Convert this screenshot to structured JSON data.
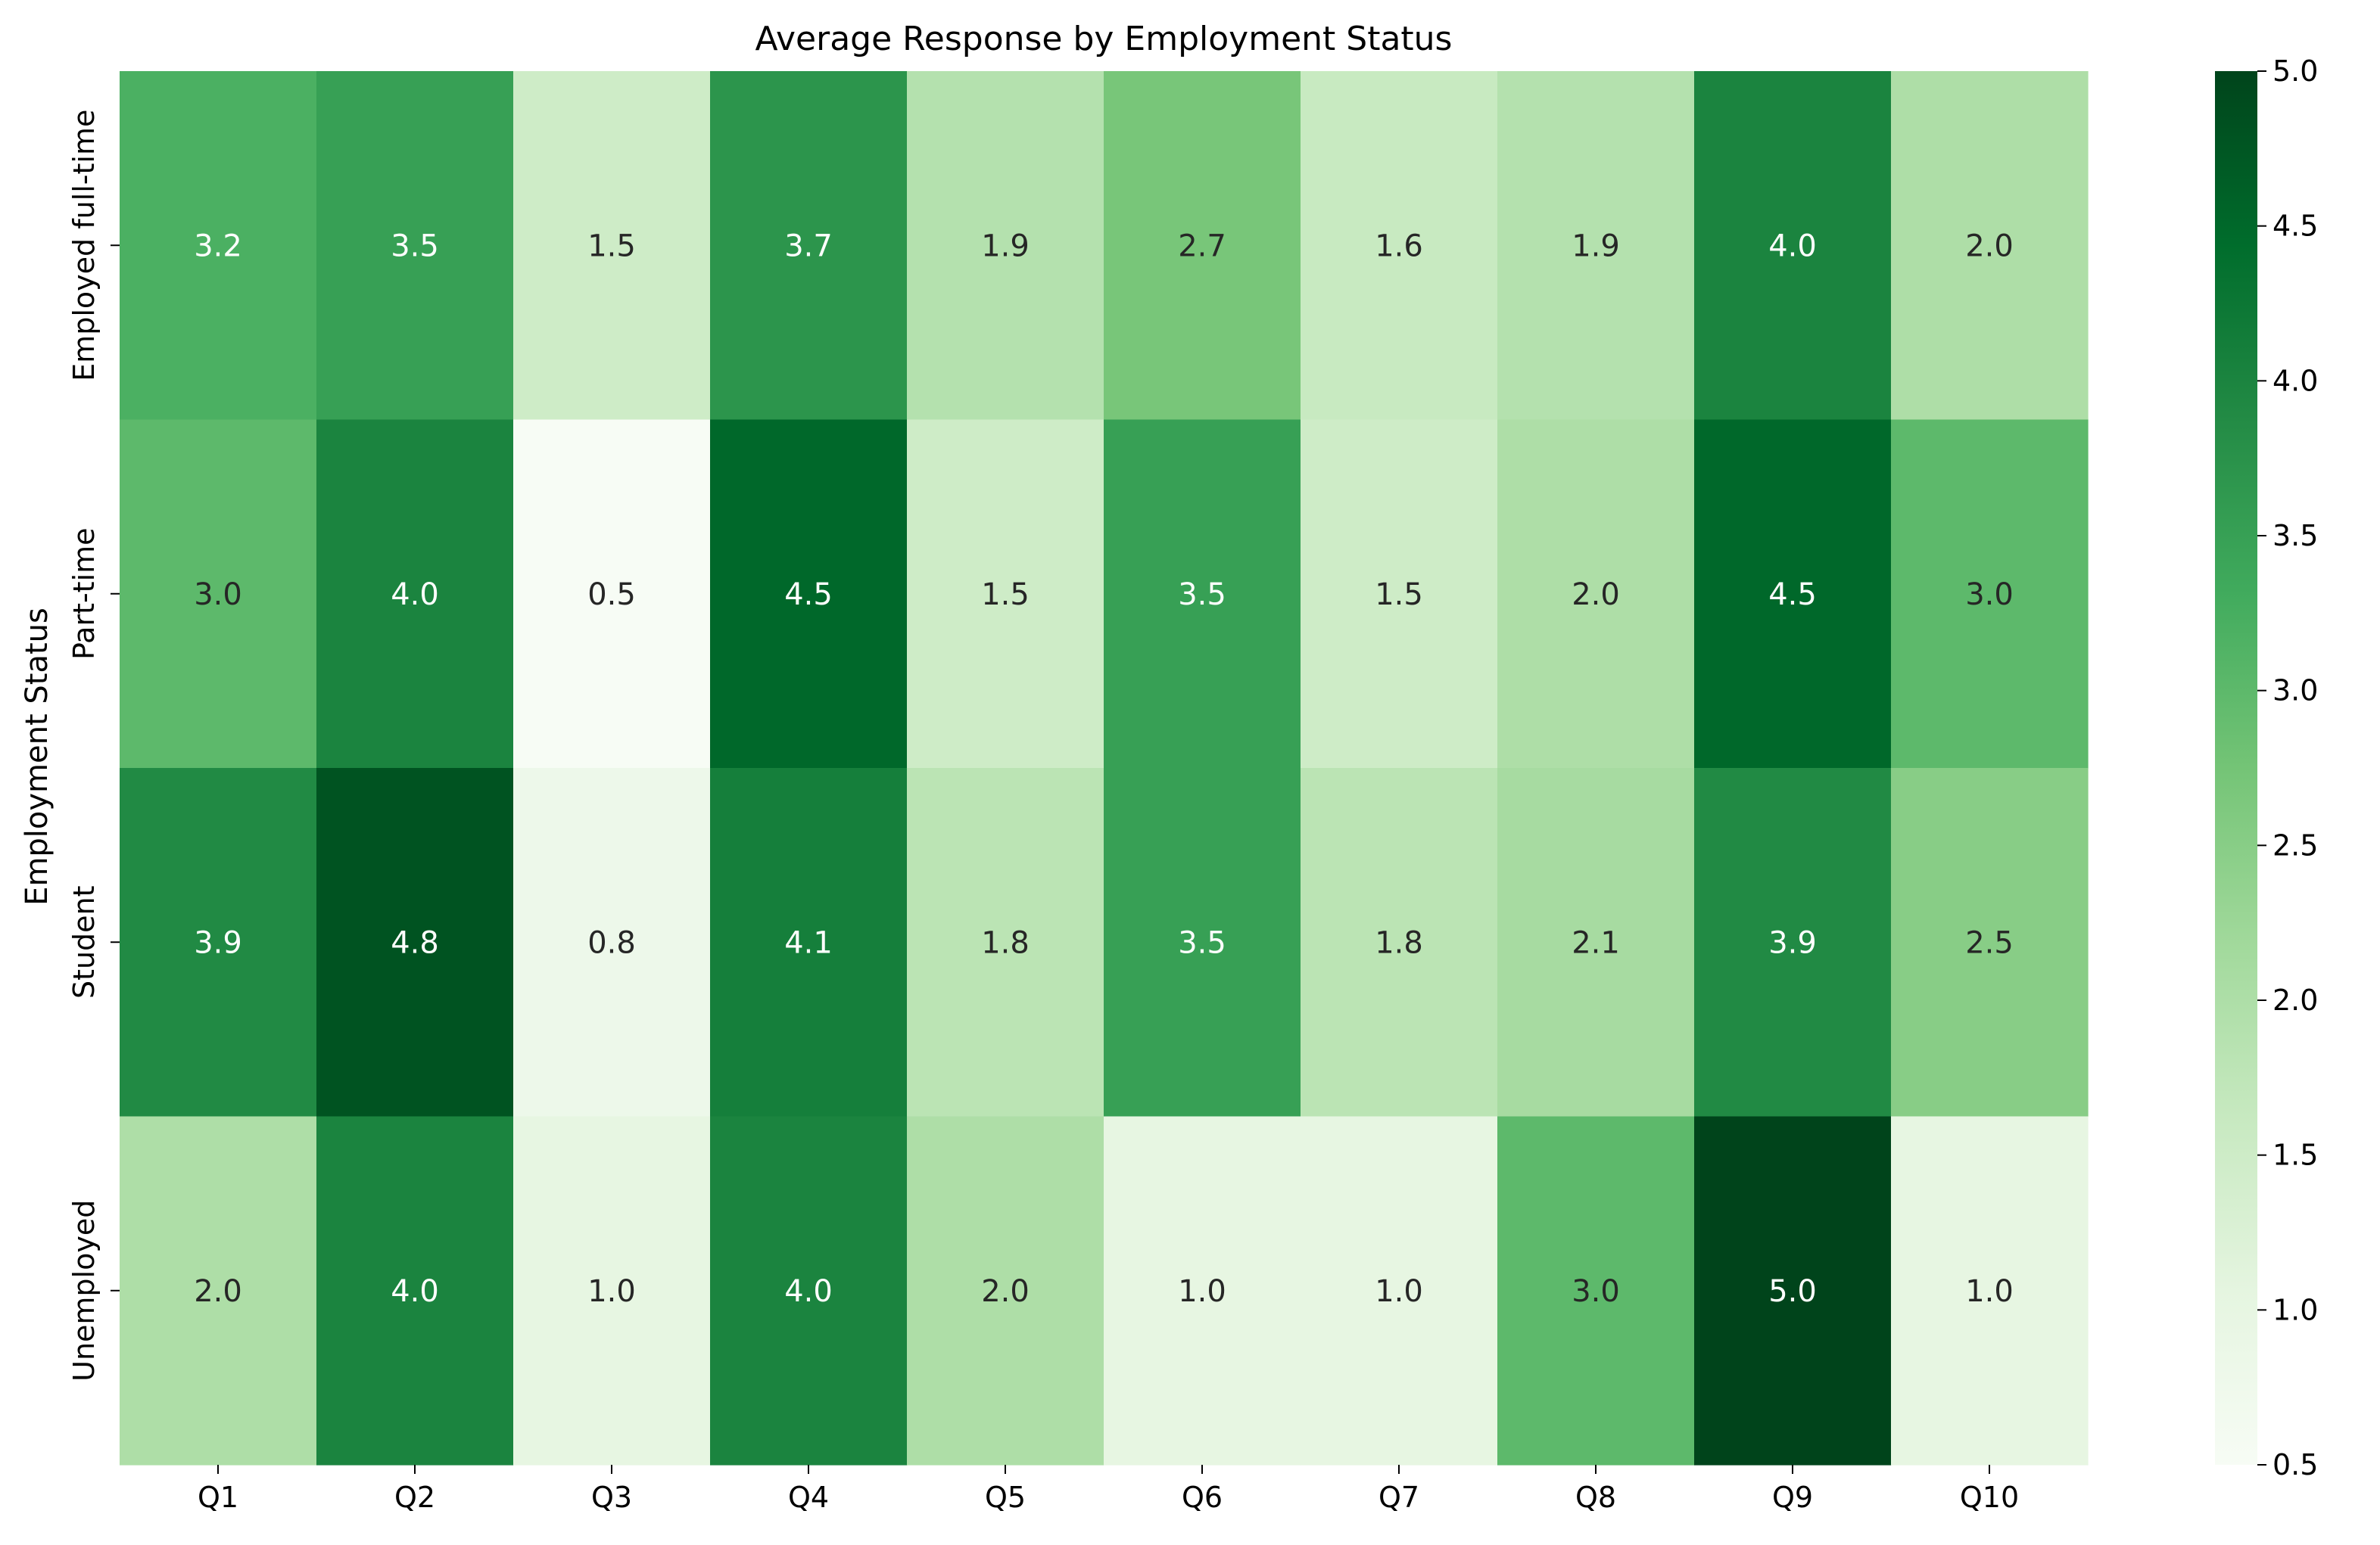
{
  "chart_data": {
    "type": "heatmap",
    "title": "Average Response by Employment Status",
    "xlabel": "",
    "ylabel": "Employment Status",
    "x_categories": [
      "Q1",
      "Q2",
      "Q3",
      "Q4",
      "Q5",
      "Q6",
      "Q7",
      "Q8",
      "Q9",
      "Q10"
    ],
    "y_categories": [
      "Employed full-time",
      "Part-time",
      "Student",
      "Unemployed"
    ],
    "values": [
      [
        3.2,
        3.5,
        1.5,
        3.7,
        1.9,
        2.7,
        1.6,
        1.9,
        4.0,
        2.0
      ],
      [
        3.0,
        4.0,
        0.5,
        4.5,
        1.5,
        3.5,
        1.5,
        2.0,
        4.5,
        3.0
      ],
      [
        3.9,
        4.8,
        0.8,
        4.1,
        1.8,
        3.5,
        1.8,
        2.1,
        3.9,
        2.5
      ],
      [
        2.0,
        4.0,
        1.0,
        4.0,
        2.0,
        1.0,
        1.0,
        3.0,
        5.0,
        1.0
      ]
    ],
    "value_format": "0.0",
    "colormap": "Greens",
    "colorbar": {
      "min": 0.5,
      "max": 5.0,
      "ticks": [
        "0.5",
        "1.0",
        "1.5",
        "2.0",
        "2.5",
        "3.0",
        "3.5",
        "4.0",
        "4.5",
        "5.0"
      ]
    },
    "grid": false,
    "legend": "colorbar-right"
  }
}
